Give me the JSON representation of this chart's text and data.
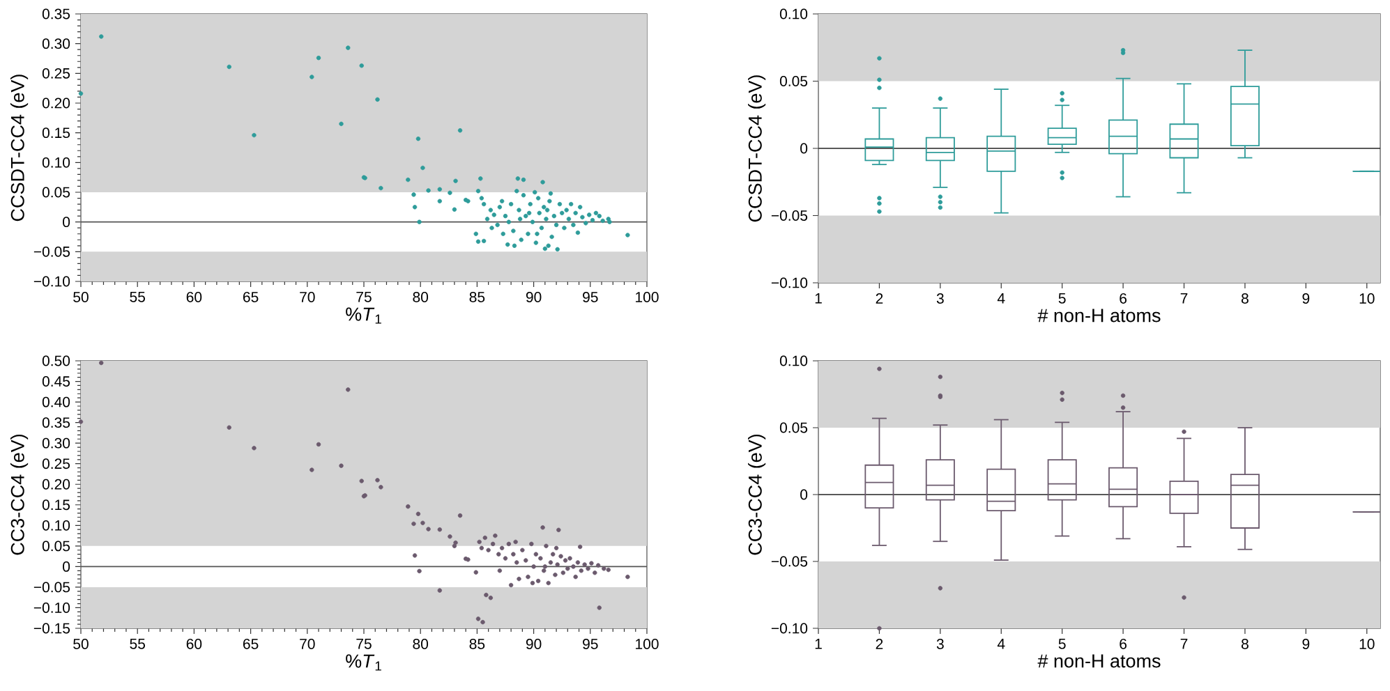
{
  "chart_data": [
    {
      "type": "scatter",
      "xlabel": "%*T*$_{1}$",
      "ylabel": "CCSDT-CC4 (eV)",
      "color": "#2e9c9a",
      "marker": "circle",
      "xlim": [
        50,
        100
      ],
      "ylim": [
        -0.1,
        0.35
      ],
      "xticks": [
        50,
        55,
        60,
        65,
        70,
        75,
        80,
        85,
        90,
        95,
        100
      ],
      "yticks": [
        {
          "value": -0.1,
          "label": "−0.10"
        },
        {
          "value": -0.05,
          "label": "−0.05"
        },
        0,
        {
          "value": 0.05,
          "label": "0.05"
        },
        {
          "value": 0.1,
          "label": "0.10"
        },
        {
          "value": 0.15,
          "label": "0.15"
        },
        {
          "value": 0.2,
          "label": "0.20"
        },
        {
          "value": 0.25,
          "label": "0.25"
        },
        {
          "value": 0.3,
          "label": "0.30"
        },
        {
          "value": 0.35,
          "label": "0.35"
        }
      ],
      "bands": [
        {
          "axis": "y",
          "from": -0.1,
          "to": -0.05,
          "color": "#d4d4d4"
        },
        {
          "axis": "y",
          "from": 0.05,
          "to": 0.35,
          "color": "#d4d4d4"
        }
      ],
      "ref_lines": [
        {
          "axis": "y",
          "value": 0,
          "color": "#555555"
        }
      ],
      "x": [
        50.0,
        51.8,
        63.1,
        65.3,
        70.4,
        71.0,
        73.0,
        73.6,
        74.8,
        75.0,
        75.1,
        76.2,
        76.5,
        78.9,
        79.4,
        79.5,
        79.8,
        79.9,
        80.2,
        80.7,
        81.7,
        81.7,
        82.6,
        83.0,
        83.1,
        83.5,
        84.0,
        84.2,
        84.9,
        85.1,
        85.1,
        85.3,
        85.6,
        87.7,
        88.3,
        88.6,
        89.1,
        90.8,
        98.3,
        85.4,
        85.6,
        85.9,
        86.2,
        86.5,
        86.8,
        87.0,
        87.2,
        87.5,
        87.8,
        88.0,
        88.2,
        88.5,
        88.7,
        88.9,
        89.1,
        89.3,
        89.5,
        89.7,
        89.9,
        90.1,
        90.2,
        90.4,
        90.5,
        90.7,
        90.9,
        91.0,
        91.1,
        91.3,
        91.4,
        91.5,
        91.6,
        91.8,
        92.0,
        92.1,
        92.3,
        92.5,
        92.7,
        92.9,
        93.1,
        93.3,
        93.5,
        93.7,
        93.9,
        94.1,
        94.3,
        94.6,
        94.9,
        95.2,
        95.5,
        95.8,
        96.1,
        96.6,
        96.7,
        86.3,
        87.3,
        88.8,
        89.6,
        90.3,
        91.2
      ],
      "values": [
        0.216,
        0.312,
        0.261,
        0.146,
        0.244,
        0.276,
        0.165,
        0.293,
        0.263,
        0.075,
        0.074,
        0.206,
        0.057,
        0.071,
        0.046,
        0.025,
        0.14,
        0.0,
        0.091,
        0.053,
        0.055,
        0.035,
        0.049,
        0.021,
        0.069,
        0.154,
        0.037,
        0.035,
        -0.02,
        -0.033,
        0.052,
        0.073,
        -0.032,
        -0.038,
        -0.04,
        0.073,
        0.071,
        0.067,
        -0.022,
        0.04,
        0.03,
        0.005,
        0.02,
        0.012,
        -0.005,
        0.025,
        0.035,
        0.01,
        0.0,
        0.03,
        -0.015,
        0.052,
        0.02,
        -0.03,
        0.045,
        0.01,
        -0.02,
        0.03,
        0.0,
        0.05,
        -0.035,
        0.04,
        0.015,
        -0.01,
        0.025,
        -0.045,
        0.005,
        -0.04,
        0.035,
        0.048,
        -0.025,
        0.01,
        -0.005,
        -0.046,
        0.03,
        0.015,
        -0.01,
        0.02,
        0.005,
        0.03,
        -0.005,
        0.015,
        -0.018,
        0.025,
        0.008,
        -0.002,
        0.012,
        0.003,
        0.015,
        0.01,
        0.002,
        0.005,
        0.0,
        -0.01,
        -0.02,
        0.005,
        0.015,
        -0.02,
        0.02
      ]
    },
    {
      "type": "box",
      "xlabel": "# non-H atoms",
      "ylabel": "CCSDT-CC4 (eV)",
      "color": "#2e9c9a",
      "marker": "circle",
      "xlim": [
        1,
        10.22
      ],
      "ylim": [
        -0.1,
        0.1
      ],
      "xticks": [
        1,
        2,
        3,
        4,
        5,
        6,
        7,
        8,
        9,
        10
      ],
      "yticks": [
        {
          "value": -0.1,
          "label": "−0.10"
        },
        {
          "value": -0.05,
          "label": "−0.05"
        },
        0,
        {
          "value": 0.05,
          "label": "0.05"
        },
        {
          "value": 0.1,
          "label": "0.10"
        }
      ],
      "bands": [
        {
          "axis": "y",
          "from": -0.1,
          "to": -0.05,
          "color": "#d4d4d4"
        },
        {
          "axis": "y",
          "from": 0.05,
          "to": 0.1,
          "color": "#d4d4d4"
        }
      ],
      "ref_lines": [
        {
          "axis": "y",
          "value": 0,
          "color": "#222222"
        }
      ],
      "x": [
        2,
        3,
        4,
        5,
        6,
        7,
        8,
        10
      ],
      "boxes": [
        {
          "low": -0.012,
          "q1": -0.009,
          "median": 0.001,
          "q3": 0.007,
          "high": 0.03,
          "outliers": [
            0.067,
            0.051,
            0.045,
            -0.037,
            -0.041,
            -0.047
          ]
        },
        {
          "low": -0.029,
          "q1": -0.009,
          "median": -0.003,
          "q3": 0.008,
          "high": 0.03,
          "outliers": [
            0.037,
            -0.036,
            -0.04,
            -0.044
          ]
        },
        {
          "low": -0.048,
          "q1": -0.017,
          "median": -0.002,
          "q3": 0.009,
          "high": 0.044
        },
        {
          "low": -0.003,
          "q1": 0.003,
          "median": 0.008,
          "q3": 0.015,
          "high": 0.032,
          "outliers": [
            0.041,
            0.036,
            -0.018,
            -0.022
          ]
        },
        {
          "low": -0.036,
          "q1": -0.004,
          "median": 0.009,
          "q3": 0.021,
          "high": 0.052,
          "outliers": [
            0.073,
            0.071
          ]
        },
        {
          "low": -0.033,
          "q1": -0.007,
          "median": 0.007,
          "q3": 0.018,
          "high": 0.048
        },
        {
          "low": -0.007,
          "q1": 0.002,
          "median": 0.033,
          "q3": 0.046,
          "high": 0.073
        },
        {
          "low": -0.017,
          "q1": -0.017,
          "median": -0.017,
          "q3": -0.017,
          "high": -0.017
        }
      ]
    },
    {
      "type": "scatter",
      "xlabel": "%*T*$_{1}$",
      "ylabel": "CC3-CC4 (eV)",
      "color": "#6b5a6d",
      "marker": "circle",
      "xlim": [
        50,
        100
      ],
      "ylim": [
        -0.15,
        0.5
      ],
      "xticks": [
        50,
        55,
        60,
        65,
        70,
        75,
        80,
        85,
        90,
        95,
        100
      ],
      "yticks": [
        {
          "value": -0.15,
          "label": "−0.15"
        },
        {
          "value": -0.1,
          "label": "−0.10"
        },
        {
          "value": -0.05,
          "label": "−0.05"
        },
        0,
        {
          "value": 0.05,
          "label": "0.05"
        },
        {
          "value": 0.1,
          "label": "0.10"
        },
        {
          "value": 0.15,
          "label": "0.15"
        },
        {
          "value": 0.2,
          "label": "0.20"
        },
        {
          "value": 0.25,
          "label": "0.25"
        },
        {
          "value": 0.3,
          "label": "0.30"
        },
        {
          "value": 0.35,
          "label": "0.35"
        },
        {
          "value": 0.4,
          "label": "0.40"
        },
        {
          "value": 0.45,
          "label": "0.45"
        },
        {
          "value": 0.5,
          "label": "0.50"
        }
      ],
      "bands": [
        {
          "axis": "y",
          "from": -0.15,
          "to": -0.05,
          "color": "#d4d4d4"
        },
        {
          "axis": "y",
          "from": 0.05,
          "to": 0.5,
          "color": "#d4d4d4"
        }
      ],
      "ref_lines": [
        {
          "axis": "y",
          "value": 0,
          "color": "#555555"
        }
      ],
      "x": [
        50.0,
        51.8,
        63.1,
        65.3,
        70.4,
        71.0,
        73.0,
        73.6,
        74.8,
        75.0,
        75.1,
        76.2,
        76.5,
        78.9,
        79.4,
        79.5,
        79.8,
        79.9,
        80.2,
        80.7,
        81.7,
        81.7,
        82.6,
        83.0,
        83.1,
        83.5,
        84.0,
        84.2,
        84.9,
        85.1,
        85.5,
        85.8,
        86.2,
        90.8,
        92.2,
        94.1,
        95.8,
        98.3,
        85.2,
        85.4,
        85.7,
        86.0,
        86.4,
        86.6,
        86.9,
        87.2,
        87.5,
        87.8,
        88.0,
        88.2,
        88.5,
        88.7,
        89.0,
        89.3,
        89.5,
        89.8,
        90.0,
        90.2,
        90.4,
        90.6,
        90.9,
        91.1,
        91.3,
        91.5,
        91.7,
        91.9,
        92.1,
        92.4,
        92.6,
        92.8,
        93.0,
        93.2,
        93.5,
        93.7,
        93.9,
        94.2,
        94.5,
        94.8,
        95.1,
        95.4,
        95.7,
        96.2,
        96.6,
        87.0,
        88.4,
        89.9,
        91.0,
        92.0
      ],
      "values": [
        0.352,
        0.495,
        0.338,
        0.288,
        0.235,
        0.297,
        0.245,
        0.43,
        0.208,
        0.171,
        0.173,
        0.21,
        0.193,
        0.146,
        0.104,
        0.027,
        0.128,
        -0.011,
        0.106,
        0.091,
        0.09,
        -0.058,
        0.073,
        0.05,
        0.058,
        0.124,
        0.019,
        0.017,
        -0.014,
        -0.127,
        -0.135,
        -0.069,
        -0.076,
        0.095,
        0.089,
        0.048,
        -0.1,
        -0.025,
        0.06,
        0.045,
        0.07,
        0.04,
        0.055,
        0.075,
        0.03,
        0.045,
        0.02,
        0.055,
        -0.045,
        0.03,
        0.01,
        -0.03,
        0.04,
        0.015,
        -0.025,
        0.055,
        0.0,
        0.03,
        -0.035,
        0.02,
        -0.01,
        0.05,
        -0.04,
        0.01,
        0.03,
        -0.02,
        0.005,
        0.025,
        -0.015,
        0.015,
        -0.005,
        0.02,
        0.0,
        -0.025,
        0.01,
        -0.01,
        0.005,
        -0.005,
        0.008,
        -0.015,
        0.003,
        -0.005,
        -0.008,
        -0.01,
        0.06,
        -0.04,
        0.0,
        0.045
      ]
    },
    {
      "type": "box",
      "xlabel": "# non-H atoms",
      "ylabel": "CC3-CC4 (eV)",
      "color": "#6b5a6d",
      "marker": "circle",
      "xlim": [
        1,
        10.22
      ],
      "ylim": [
        -0.1,
        0.1
      ],
      "xticks": [
        1,
        2,
        3,
        4,
        5,
        6,
        7,
        8,
        9,
        10
      ],
      "yticks": [
        {
          "value": -0.1,
          "label": "−0.10"
        },
        {
          "value": -0.05,
          "label": "−0.05"
        },
        0,
        {
          "value": 0.05,
          "label": "0.05"
        },
        {
          "value": 0.1,
          "label": "0.10"
        }
      ],
      "bands": [
        {
          "axis": "y",
          "from": -0.1,
          "to": -0.05,
          "color": "#d4d4d4"
        },
        {
          "axis": "y",
          "from": 0.05,
          "to": 0.1,
          "color": "#d4d4d4"
        }
      ],
      "ref_lines": [
        {
          "axis": "y",
          "value": 0,
          "color": "#222222"
        }
      ],
      "x": [
        2,
        3,
        4,
        5,
        6,
        7,
        8,
        10
      ],
      "boxes": [
        {
          "low": -0.038,
          "q1": -0.01,
          "median": 0.009,
          "q3": 0.022,
          "high": 0.057,
          "outliers": [
            0.094,
            -0.1
          ]
        },
        {
          "low": -0.035,
          "q1": -0.004,
          "median": 0.007,
          "q3": 0.026,
          "high": 0.052,
          "outliers": [
            0.088,
            0.074,
            0.073,
            -0.07
          ]
        },
        {
          "low": -0.049,
          "q1": -0.012,
          "median": -0.005,
          "q3": 0.019,
          "high": 0.056
        },
        {
          "low": -0.031,
          "q1": -0.004,
          "median": 0.008,
          "q3": 0.026,
          "high": 0.054,
          "outliers": [
            0.076,
            0.071
          ]
        },
        {
          "low": -0.033,
          "q1": -0.009,
          "median": 0.004,
          "q3": 0.02,
          "high": 0.062,
          "outliers": [
            0.074,
            0.065
          ]
        },
        {
          "low": -0.039,
          "q1": -0.014,
          "median": 0.0,
          "q3": 0.01,
          "high": 0.042,
          "outliers": [
            0.047,
            -0.077
          ]
        },
        {
          "low": -0.041,
          "q1": -0.025,
          "median": 0.007,
          "q3": 0.015,
          "high": 0.05
        },
        {
          "low": -0.013,
          "q1": -0.013,
          "median": -0.013,
          "q3": -0.013,
          "high": -0.013
        }
      ]
    }
  ]
}
